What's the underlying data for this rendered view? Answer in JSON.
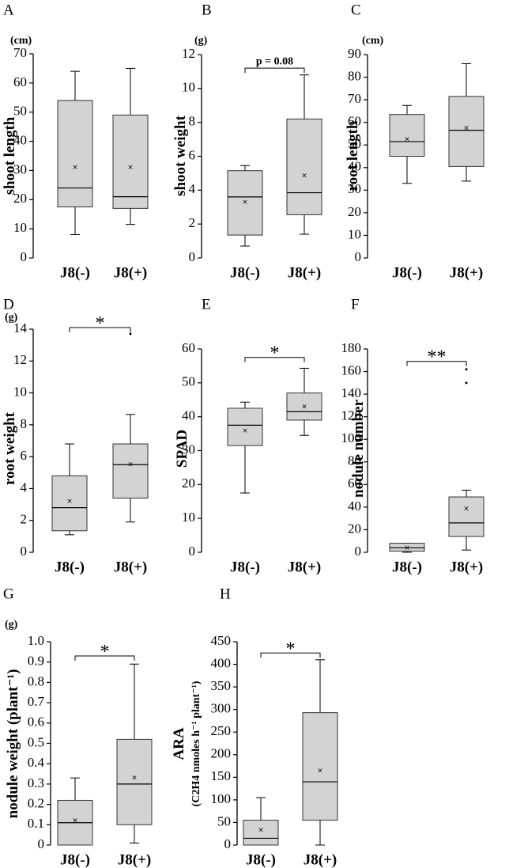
{
  "chart_data": [
    {
      "panel": "A",
      "type": "box",
      "unit": "(cm)",
      "ylabel": "shoot length",
      "ylim": [
        0,
        70
      ],
      "yticks": [
        0,
        10,
        20,
        30,
        40,
        50,
        60,
        70
      ],
      "categories": [
        "J8(-)",
        "J8(+)"
      ],
      "boxes": [
        {
          "min": 8,
          "q1": 17.5,
          "median": 24,
          "q3": 54,
          "max": 64,
          "mean": 31,
          "outliers": []
        },
        {
          "min": 11.5,
          "q1": 17,
          "median": 21,
          "q3": 49,
          "max": 65,
          "mean": 31,
          "outliers": []
        }
      ],
      "significance": null
    },
    {
      "panel": "B",
      "type": "box",
      "unit": "(g)",
      "ylabel": "shoot weight",
      "ylim": [
        0,
        12
      ],
      "yticks": [
        0,
        2,
        4,
        6,
        8,
        10,
        12
      ],
      "categories": [
        "J8(-)",
        "J8(+)"
      ],
      "boxes": [
        {
          "min": 0.7,
          "q1": 1.35,
          "median": 3.6,
          "q3": 5.15,
          "max": 5.45,
          "mean": 3.3,
          "outliers": []
        },
        {
          "min": 1.4,
          "q1": 2.55,
          "median": 3.85,
          "q3": 8.2,
          "max": 10.8,
          "mean": 4.85,
          "outliers": []
        }
      ],
      "significance": {
        "label": "p = 0.08",
        "y": 11.2
      }
    },
    {
      "panel": "C",
      "type": "box",
      "unit": "(cm)",
      "ylabel": "root length",
      "ylim": [
        0,
        90
      ],
      "yticks": [
        0,
        10,
        20,
        30,
        40,
        50,
        60,
        70,
        80,
        90
      ],
      "categories": [
        "J8(-)",
        "J8(+)"
      ],
      "boxes": [
        {
          "min": 33,
          "q1": 45,
          "median": 51.5,
          "q3": 63.5,
          "max": 67.5,
          "mean": 52.5,
          "outliers": []
        },
        {
          "min": 34,
          "q1": 40.5,
          "median": 56.5,
          "q3": 71.5,
          "max": 86,
          "mean": 57.5,
          "outliers": []
        }
      ],
      "significance": null
    },
    {
      "panel": "D",
      "type": "box",
      "unit": "(g)",
      "ylabel": "root weight",
      "ylim": [
        0,
        14
      ],
      "yticks": [
        0,
        2,
        4,
        6,
        8,
        10,
        12,
        14
      ],
      "categories": [
        "J8(-)",
        "J8(+)"
      ],
      "boxes": [
        {
          "min": 1.1,
          "q1": 1.35,
          "median": 2.8,
          "q3": 4.8,
          "max": 6.8,
          "mean": 3.2,
          "outliers": []
        },
        {
          "min": 1.9,
          "q1": 3.4,
          "median": 5.5,
          "q3": 6.8,
          "max": 8.65,
          "mean": 5.5,
          "outliers": [
            13.7
          ]
        }
      ],
      "significance": {
        "label": "*",
        "y": 14.1
      }
    },
    {
      "panel": "E",
      "type": "box",
      "unit": "",
      "ylabel": "SPAD",
      "ylim": [
        0,
        60
      ],
      "yticks": [
        0,
        10,
        20,
        30,
        40,
        50,
        60
      ],
      "categories": [
        "J8(-)",
        "J8(+)"
      ],
      "boxes": [
        {
          "min": 17.5,
          "q1": 31.5,
          "median": 37.5,
          "q3": 42.5,
          "max": 44.3,
          "mean": 35.8,
          "outliers": []
        },
        {
          "min": 34.5,
          "q1": 39,
          "median": 41.5,
          "q3": 47,
          "max": 54.3,
          "mean": 43,
          "outliers": []
        }
      ],
      "significance": {
        "label": "*",
        "y": 57.5
      }
    },
    {
      "panel": "F",
      "type": "box",
      "unit": "",
      "ylabel": "nodule number",
      "ylim": [
        0,
        180
      ],
      "yticks": [
        0,
        20,
        40,
        60,
        80,
        100,
        120,
        140,
        160,
        180
      ],
      "categories": [
        "J8(-)",
        "J8(+)"
      ],
      "boxes": [
        {
          "min": 0,
          "q1": 1,
          "median": 4,
          "q3": 8,
          "max": 8,
          "mean": 4,
          "outliers": []
        },
        {
          "min": 2,
          "q1": 14,
          "median": 26,
          "q3": 49,
          "max": 55,
          "mean": 38.5,
          "outliers": [
            150,
            162
          ]
        }
      ],
      "significance": {
        "label": "**",
        "y": 169
      }
    },
    {
      "panel": "G",
      "type": "box",
      "unit": "(g)",
      "ylabel": "nodule weight (plant⁻¹)",
      "ylim": [
        0,
        1.0
      ],
      "yticks": [
        0,
        0.1,
        0.2,
        0.3,
        0.4,
        0.5,
        0.6,
        0.7,
        0.8,
        0.9,
        1.0
      ],
      "categories": [
        "J8(-)",
        "J8(+)"
      ],
      "boxes": [
        {
          "min": 0,
          "q1": 0,
          "median": 0.11,
          "q3": 0.22,
          "max": 0.33,
          "mean": 0.12,
          "outliers": []
        },
        {
          "min": 0.01,
          "q1": 0.1,
          "median": 0.3,
          "q3": 0.52,
          "max": 0.89,
          "mean": 0.33,
          "outliers": []
        }
      ],
      "significance": {
        "label": "*",
        "y": 0.93
      }
    },
    {
      "panel": "H",
      "type": "box",
      "unit": "",
      "ylabel": "ARA",
      "ylabel2": "(C2H4 nmoles h⁻¹ plant⁻¹)",
      "ylim": [
        0,
        450
      ],
      "yticks": [
        0,
        50,
        100,
        150,
        200,
        250,
        300,
        350,
        400,
        450
      ],
      "categories": [
        "J8(-)",
        "J8(+)"
      ],
      "boxes": [
        {
          "min": 0,
          "q1": 0,
          "median": 15,
          "q3": 55,
          "max": 105,
          "mean": 33,
          "outliers": []
        },
        {
          "min": 0,
          "q1": 55,
          "median": 140,
          "q3": 293,
          "max": 410,
          "mean": 165,
          "outliers": []
        }
      ],
      "significance": {
        "label": "*",
        "y": 425
      }
    }
  ]
}
